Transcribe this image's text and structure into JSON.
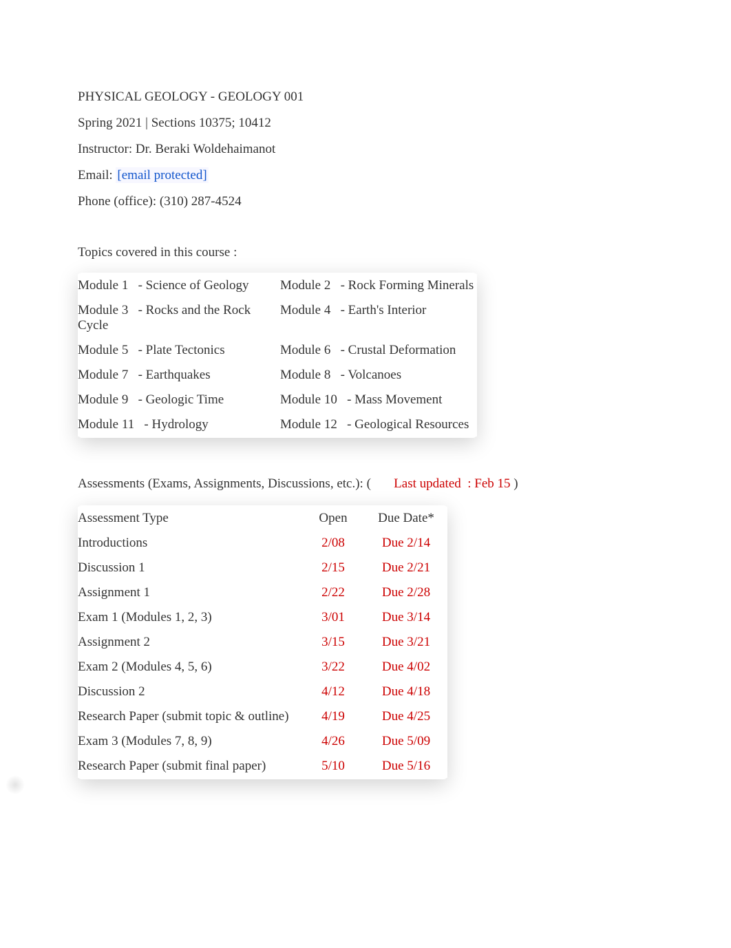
{
  "header": {
    "course_title": "PHYSICAL GEOLOGY - GEOLOGY 001",
    "term_sections": "Spring 2021 | Sections 10375; 10412",
    "instructor": "Instructor: Dr. Beraki Woldehaimanot",
    "email_label": "Email:",
    "email_text": "[email protected]",
    "phone": "Phone (office): (310) 287-4524"
  },
  "topics": {
    "heading": "Topics covered in this course :",
    "rows": [
      [
        {
          "num": "Module 1",
          "title": " - Science of Geology"
        },
        {
          "num": "Module 2",
          "title": " - Rock Forming Minerals"
        }
      ],
      [
        {
          "num": "Module 3",
          "title": " - Rocks and the Rock Cycle"
        },
        {
          "num": "Module 4",
          "title": " - Earth's Interior"
        }
      ],
      [
        {
          "num": "Module 5",
          "title": " - Plate Tectonics"
        },
        {
          "num": "Module 6",
          "title": " - Crustal Deformation"
        }
      ],
      [
        {
          "num": "Module 7",
          "title": " - Earthquakes"
        },
        {
          "num": "Module 8",
          "title": " - Volcanoes"
        }
      ],
      [
        {
          "num": "Module 9",
          "title": " - Geologic Time"
        },
        {
          "num": "Module 10",
          "title": " - Mass Movement"
        }
      ],
      [
        {
          "num": "Module 11",
          "title": " - Hydrology"
        },
        {
          "num": "Module 12",
          "title": " - Geological Resources"
        }
      ]
    ]
  },
  "assessments": {
    "heading_prefix": "Assessments (Exams, Assignments, Discussions, etc.): (",
    "last_updated_label": "Last updated",
    "last_updated_date": ": Feb 15",
    "heading_suffix": " )",
    "columns": {
      "type": "Assessment Type",
      "open": "Open",
      "due": "Due Date*"
    },
    "rows": [
      {
        "type": "Introductions",
        "open": "2/08",
        "due": "Due 2/14"
      },
      {
        "type": "Discussion 1",
        "open": "2/15",
        "due": "Due 2/21"
      },
      {
        "type": "Assignment 1",
        "open": "2/22",
        "due": "Due 2/28"
      },
      {
        "type": "Exam 1 (Modules 1, 2, 3)",
        "open": "3/01",
        "due": "Due 3/14"
      },
      {
        "type": "Assignment 2",
        "open": "3/15",
        "due": "Due 3/21"
      },
      {
        "type": "Exam 2 (Modules 4, 5, 6)",
        "open": "3/22",
        "due": "Due 4/02"
      },
      {
        "type": "Discussion 2",
        "open": "4/12",
        "due": "Due 4/18"
      },
      {
        "type": "Research Paper (submit topic & outline)",
        "open": "4/19",
        "due": "Due 4/25"
      },
      {
        "type": "Exam 3 (Modules 7, 8, 9)",
        "open": "4/26",
        "due": "Due 5/09"
      },
      {
        "type": "Research Paper (submit final paper)",
        "open": "5/10",
        "due": "Due 5/16"
      }
    ]
  },
  "colors": {
    "text": "#333333",
    "link": "#1155cc",
    "red": "#cc0000",
    "background": "#ffffff"
  }
}
